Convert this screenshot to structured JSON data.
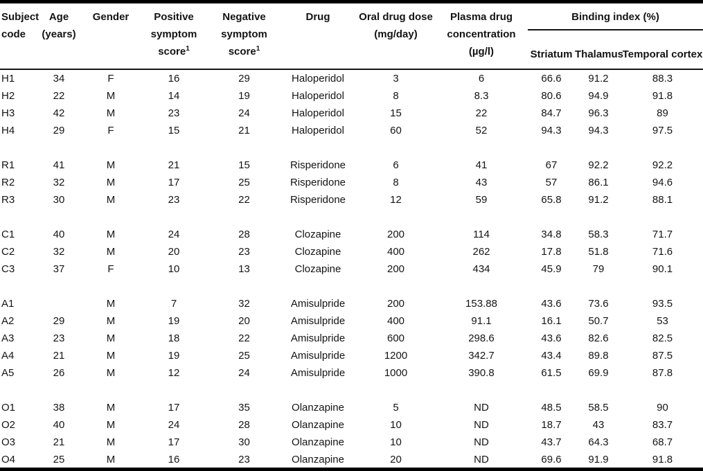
{
  "table": {
    "header": {
      "subject": {
        "l1": "Subject",
        "l2": "code"
      },
      "age": {
        "l1": "Age",
        "l2": "(years)"
      },
      "gender": {
        "l1": "Gender"
      },
      "positive": {
        "l1": "Positive",
        "l2": "symptom",
        "l3": "score",
        "sup": "1"
      },
      "negative": {
        "l1": "Negative",
        "l2": "symptom",
        "l3": "score",
        "sup": "1"
      },
      "drug": {
        "l1": "Drug"
      },
      "dose": {
        "l1": "Oral drug dose",
        "l2": "(mg/day)"
      },
      "plasma": {
        "l1": "Plasma drug",
        "l2": "concentration",
        "l3": "(µg/l)"
      },
      "binding_group": "Binding index (%)",
      "striatum": "Striatum",
      "thalamus": "Thalamus",
      "temporal": "Temporal cortex"
    },
    "groups": [
      {
        "drug": "Haloperidol",
        "rows": [
          {
            "code": "H1",
            "age": "34",
            "gender": "F",
            "positive": "16",
            "negative": "29",
            "drug": "Haloperidol",
            "dose": "3",
            "plasma": "6",
            "striatum": "66.6",
            "thalamus": "91.2",
            "temporal": "88.3"
          },
          {
            "code": "H2",
            "age": "22",
            "gender": "M",
            "positive": "14",
            "negative": "19",
            "drug": "Haloperidol",
            "dose": "8",
            "plasma": "8.3",
            "striatum": "80.6",
            "thalamus": "94.9",
            "temporal": "91.8"
          },
          {
            "code": "H3",
            "age": "42",
            "gender": "M",
            "positive": "23",
            "negative": "24",
            "drug": "Haloperidol",
            "dose": "15",
            "plasma": "22",
            "striatum": "84.7",
            "thalamus": "96.3",
            "temporal": "89"
          },
          {
            "code": "H4",
            "age": "29",
            "gender": "F",
            "positive": "15",
            "negative": "21",
            "drug": "Haloperidol",
            "dose": "60",
            "plasma": "52",
            "striatum": "94.3",
            "thalamus": "94.3",
            "temporal": "97.5"
          }
        ]
      },
      {
        "drug": "Risperidone",
        "rows": [
          {
            "code": "R1",
            "age": "41",
            "gender": "M",
            "positive": "21",
            "negative": "15",
            "drug": "Risperidone",
            "dose": "6",
            "plasma": "41",
            "striatum": "67",
            "thalamus": "92.2",
            "temporal": "92.2"
          },
          {
            "code": "R2",
            "age": "32",
            "gender": "M",
            "positive": "17",
            "negative": "25",
            "drug": "Risperidone",
            "dose": "8",
            "plasma": "43",
            "striatum": "57",
            "thalamus": "86.1",
            "temporal": "94.6"
          },
          {
            "code": "R3",
            "age": "30",
            "gender": "M",
            "positive": "23",
            "negative": "22",
            "drug": "Risperidone",
            "dose": "12",
            "plasma": "59",
            "striatum": "65.8",
            "thalamus": "91.2",
            "temporal": "88.1"
          }
        ]
      },
      {
        "drug": "Clozapine",
        "rows": [
          {
            "code": "C1",
            "age": "40",
            "gender": "M",
            "positive": "24",
            "negative": "28",
            "drug": "Clozapine",
            "dose": "200",
            "plasma": "114",
            "striatum": "34.8",
            "thalamus": "58.3",
            "temporal": "71.7"
          },
          {
            "code": "C2",
            "age": "32",
            "gender": "M",
            "positive": "20",
            "negative": "23",
            "drug": "Clozapine",
            "dose": "400",
            "plasma": "262",
            "striatum": "17.8",
            "thalamus": "51.8",
            "temporal": "71.6"
          },
          {
            "code": "C3",
            "age": "37",
            "gender": "F",
            "positive": "10",
            "negative": "13",
            "drug": "Clozapine",
            "dose": "200",
            "plasma": "434",
            "striatum": "45.9",
            "thalamus": "79",
            "temporal": "90.1"
          }
        ]
      },
      {
        "drug": "Amisulpride",
        "rows": [
          {
            "code": "A1",
            "age": "",
            "gender": "M",
            "positive": "7",
            "negative": "32",
            "drug": "Amisulpride",
            "dose": "200",
            "plasma": "153.88",
            "striatum": "43.6",
            "thalamus": "73.6",
            "temporal": "93.5"
          },
          {
            "code": "A2",
            "age": "29",
            "gender": "M",
            "positive": "19",
            "negative": "20",
            "drug": "Amisulpride",
            "dose": "400",
            "plasma": "91.1",
            "striatum": "16.1",
            "thalamus": "50.7",
            "temporal": "53"
          },
          {
            "code": "A3",
            "age": "23",
            "gender": "M",
            "positive": "18",
            "negative": "22",
            "drug": "Amisulpride",
            "dose": "600",
            "plasma": "298.6",
            "striatum": "43.6",
            "thalamus": "82.6",
            "temporal": "82.5"
          },
          {
            "code": "A4",
            "age": "21",
            "gender": "M",
            "positive": "19",
            "negative": "25",
            "drug": "Amisulpride",
            "dose": "1200",
            "plasma": "342.7",
            "striatum": "43.4",
            "thalamus": "89.8",
            "temporal": "87.5"
          },
          {
            "code": "A5",
            "age": "26",
            "gender": "M",
            "positive": "12",
            "negative": "24",
            "drug": "Amisulpride",
            "dose": "1000",
            "plasma": "390.8",
            "striatum": "61.5",
            "thalamus": "69.9",
            "temporal": "87.8"
          }
        ]
      },
      {
        "drug": "Olanzapine",
        "rows": [
          {
            "code": "O1",
            "age": "38",
            "gender": "M",
            "positive": "17",
            "negative": "35",
            "drug": "Olanzapine",
            "dose": "5",
            "plasma": "ND",
            "striatum": "48.5",
            "thalamus": "58.5",
            "temporal": "90"
          },
          {
            "code": "O2",
            "age": "40",
            "gender": "M",
            "positive": "24",
            "negative": "28",
            "drug": "Olanzapine",
            "dose": "10",
            "plasma": "ND",
            "striatum": "18.7",
            "thalamus": "43",
            "temporal": "83.7"
          },
          {
            "code": "O3",
            "age": "21",
            "gender": "M",
            "positive": "17",
            "negative": "30",
            "drug": "Olanzapine",
            "dose": "10",
            "plasma": "ND",
            "striatum": "43.7",
            "thalamus": "64.3",
            "temporal": "68.7"
          },
          {
            "code": "O4",
            "age": "25",
            "gender": "M",
            "positive": "16",
            "negative": "23",
            "drug": "Olanzapine",
            "dose": "20",
            "plasma": "ND",
            "striatum": "69.6",
            "thalamus": "91.9",
            "temporal": "91.8"
          }
        ]
      }
    ]
  }
}
